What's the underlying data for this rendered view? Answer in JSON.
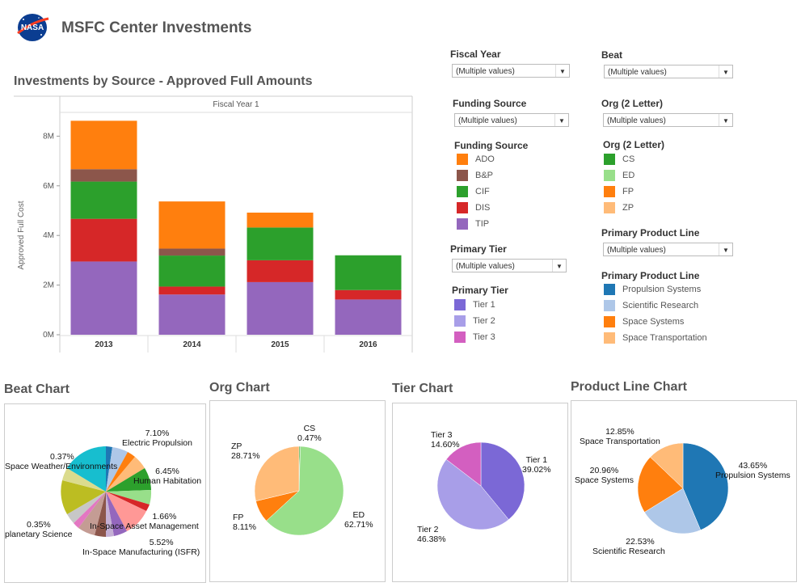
{
  "header": {
    "logo_text": "NASA",
    "title": "MSFC Center Investments"
  },
  "colors": {
    "ADO": "#ff7f0e",
    "B&P": "#8c564b",
    "CIF": "#2ca02c",
    "DIS": "#d62728",
    "TIP": "#9467bd",
    "CS": "#2ca02c",
    "ED": "#98df8a",
    "FP": "#ff7f0e",
    "ZP": "#ffbb78",
    "Tier 1": "#7b68d6",
    "Tier 2": "#a89ee8",
    "Tier 3": "#d35fc0",
    "Propulsion Systems": "#1f77b4",
    "Scientific Research": "#aec7e8",
    "Space Systems": "#ff7f0e",
    "Space Transportation": "#ffbb78"
  },
  "main_chart": {
    "title": "Investments by Source - Approved Full Amounts",
    "header": "Fiscal Year 1",
    "chart_data": {
      "type": "bar",
      "stacked": true,
      "categories": [
        "2013",
        "2014",
        "2015",
        "2016"
      ],
      "series": [
        {
          "name": "TIP",
          "values": [
            2.95,
            1.62,
            2.12,
            1.42
          ]
        },
        {
          "name": "DIS",
          "values": [
            1.72,
            0.32,
            0.88,
            0.38
          ]
        },
        {
          "name": "CIF",
          "values": [
            1.5,
            1.25,
            1.32,
            1.4
          ]
        },
        {
          "name": "B&P",
          "values": [
            0.5,
            0.28,
            0.0,
            0.0
          ]
        },
        {
          "name": "ADO",
          "values": [
            1.95,
            1.9,
            0.6,
            0.0
          ]
        }
      ],
      "ylabel": "Approved Full Cost",
      "y_ticks": [
        "0M",
        "2M",
        "4M",
        "6M",
        "8M"
      ],
      "ylim": [
        0,
        9
      ]
    }
  },
  "filters": {
    "fiscal_year": {
      "label": "Fiscal Year",
      "value": "(Multiple values)"
    },
    "beat": {
      "label": "Beat",
      "value": "(Multiple values)"
    },
    "funding_source": {
      "label": "Funding Source",
      "value": "(Multiple values)"
    },
    "org": {
      "label": "Org (2 Letter)",
      "value": "(Multiple values)"
    },
    "primary_tier": {
      "label": "Primary Tier",
      "value": "(Multiple values)"
    },
    "product_line": {
      "label": "Primary Product Line",
      "value": "(Multiple values)"
    }
  },
  "legends": {
    "funding_source": {
      "title": "Funding Source",
      "items": [
        "ADO",
        "B&P",
        "CIF",
        "DIS",
        "TIP"
      ]
    },
    "org": {
      "title": "Org (2 Letter)",
      "items": [
        "CS",
        "ED",
        "FP",
        "ZP"
      ]
    },
    "tier": {
      "title": "Primary Tier",
      "items": [
        "Tier 1",
        "Tier 2",
        "Tier 3"
      ]
    },
    "product_line": {
      "title": "Primary Product Line",
      "items": [
        "Propulsion Systems",
        "Scientific Research",
        "Space Systems",
        "Space Transportation"
      ]
    }
  },
  "pies": {
    "beat": {
      "title": "Beat Chart",
      "labels": [
        {
          "pct": "7.10%",
          "name": "Electric Propulsion"
        },
        {
          "pct": "0.37%",
          "name": "Space Weather/Environments"
        },
        {
          "pct": "6.45%",
          "name": "Human Habitation"
        },
        {
          "pct": "1.66%",
          "name": "In-Space Asset Management"
        },
        {
          "pct": "0.35%",
          "name": "planetary Science"
        },
        {
          "pct": "5.52%",
          "name": "In-Space Manufacturing (ISFR)"
        }
      ]
    },
    "org": {
      "title": "Org Chart",
      "chart_data": {
        "type": "pie",
        "slices": [
          {
            "name": "CS",
            "pct": "0.47%",
            "value": 0.47
          },
          {
            "name": "ED",
            "pct": "62.71%",
            "value": 62.71
          },
          {
            "name": "FP",
            "pct": "8.11%",
            "value": 8.11
          },
          {
            "name": "ZP",
            "pct": "28.71%",
            "value": 28.71
          }
        ]
      }
    },
    "tier": {
      "title": "Tier Chart",
      "chart_data": {
        "type": "pie",
        "slices": [
          {
            "name": "Tier 1",
            "pct": "39.02%",
            "value": 39.02
          },
          {
            "name": "Tier 2",
            "pct": "46.38%",
            "value": 46.38
          },
          {
            "name": "Tier 3",
            "pct": "14.60%",
            "value": 14.6
          }
        ]
      }
    },
    "product_line": {
      "title": "Product Line Chart",
      "chart_data": {
        "type": "pie",
        "slices": [
          {
            "name": "Propulsion Systems",
            "pct": "43.65%",
            "value": 43.65
          },
          {
            "name": "Scientific Research",
            "pct": "22.53%",
            "value": 22.53
          },
          {
            "name": "Space Systems",
            "pct": "20.96%",
            "value": 20.96
          },
          {
            "name": "Space Transportation",
            "pct": "12.85%",
            "value": 12.85
          }
        ]
      }
    }
  }
}
